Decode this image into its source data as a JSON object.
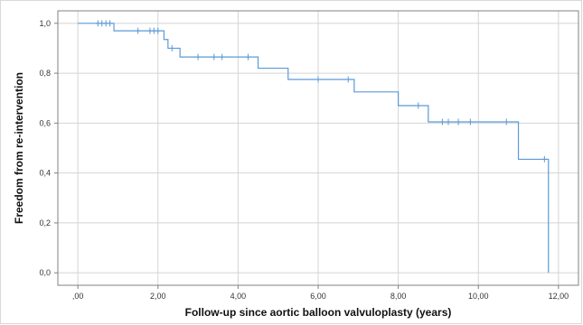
{
  "chart_data": {
    "type": "line",
    "step": true,
    "title": "",
    "xlabel": "Follow-up since aortic balloon valvuloplasty (years)",
    "ylabel": "Freedom from re-intervention",
    "xlim": [
      -0.5,
      12.5
    ],
    "ylim": [
      -0.05,
      1.05
    ],
    "grid": true,
    "x_ticks": [
      0,
      2,
      4,
      6,
      8,
      10,
      12
    ],
    "x_tick_labels": [
      ",00",
      "2,00",
      "4,00",
      "6,00",
      "8,00",
      "10,00",
      "12,00"
    ],
    "y_ticks": [
      0,
      0.2,
      0.4,
      0.6,
      0.8,
      1.0
    ],
    "y_tick_labels": [
      "0,0",
      "0,2",
      "0,4",
      "0,6",
      "0,8",
      "1,0"
    ],
    "series": [
      {
        "color": "#5b9bd5",
        "step_points": [
          {
            "x": 0.0,
            "y": 1.0
          },
          {
            "x": 0.9,
            "y": 0.97
          },
          {
            "x": 2.15,
            "y": 0.935
          },
          {
            "x": 2.25,
            "y": 0.9
          },
          {
            "x": 2.55,
            "y": 0.865
          },
          {
            "x": 4.5,
            "y": 0.82
          },
          {
            "x": 5.25,
            "y": 0.775
          },
          {
            "x": 6.9,
            "y": 0.725
          },
          {
            "x": 8.0,
            "y": 0.67
          },
          {
            "x": 8.75,
            "y": 0.605
          },
          {
            "x": 11.0,
            "y": 0.455
          },
          {
            "x": 11.75,
            "y": 0.0
          }
        ],
        "censored": [
          {
            "x": 0.5,
            "y": 1.0
          },
          {
            "x": 0.6,
            "y": 1.0
          },
          {
            "x": 0.7,
            "y": 1.0
          },
          {
            "x": 0.8,
            "y": 1.0
          },
          {
            "x": 1.5,
            "y": 0.97
          },
          {
            "x": 1.8,
            "y": 0.97
          },
          {
            "x": 1.9,
            "y": 0.97
          },
          {
            "x": 2.0,
            "y": 0.97
          },
          {
            "x": 2.35,
            "y": 0.9
          },
          {
            "x": 3.0,
            "y": 0.865
          },
          {
            "x": 3.4,
            "y": 0.865
          },
          {
            "x": 3.6,
            "y": 0.865
          },
          {
            "x": 4.25,
            "y": 0.865
          },
          {
            "x": 6.0,
            "y": 0.775
          },
          {
            "x": 6.75,
            "y": 0.775
          },
          {
            "x": 8.5,
            "y": 0.67
          },
          {
            "x": 9.1,
            "y": 0.605
          },
          {
            "x": 9.25,
            "y": 0.605
          },
          {
            "x": 9.5,
            "y": 0.605
          },
          {
            "x": 9.8,
            "y": 0.605
          },
          {
            "x": 10.7,
            "y": 0.605
          },
          {
            "x": 11.65,
            "y": 0.455
          }
        ]
      }
    ]
  }
}
